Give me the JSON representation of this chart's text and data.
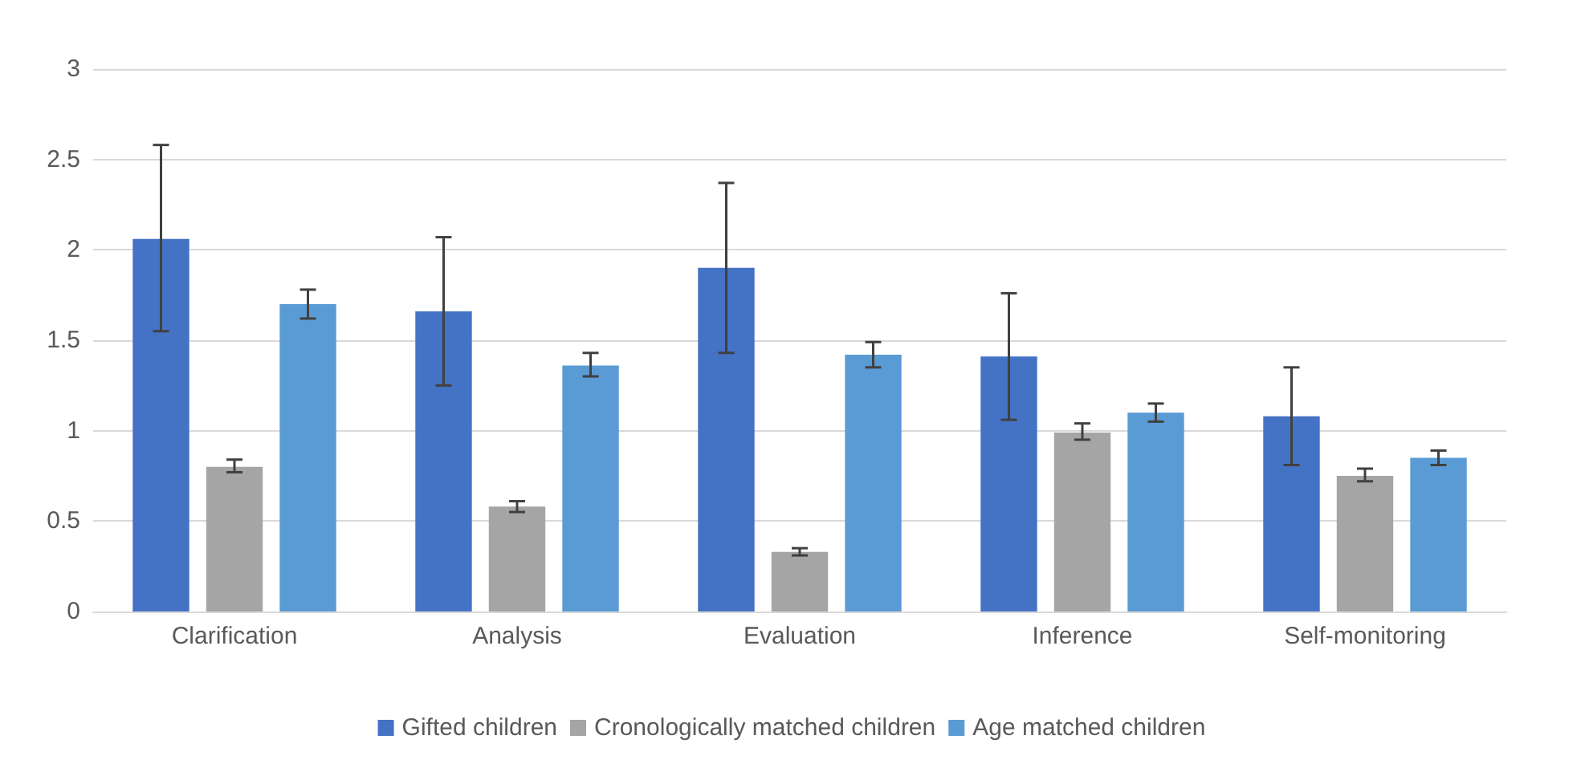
{
  "chart_data": {
    "type": "bar",
    "categories": [
      "Clarification",
      "Analysis",
      "Evaluation",
      "Inference",
      "Self-monitoring"
    ],
    "series": [
      {
        "name": "Gifted children",
        "color": "#4472c4",
        "values": [
          2.06,
          1.66,
          1.9,
          1.41,
          1.08
        ],
        "errors": [
          [
            1.55,
            2.58
          ],
          [
            1.25,
            2.07
          ],
          [
            1.43,
            2.37
          ],
          [
            1.06,
            1.76
          ],
          [
            0.81,
            1.35
          ]
        ]
      },
      {
        "name": "Cronologically matched children",
        "color": "#a5a5a5",
        "values": [
          0.8,
          0.58,
          0.33,
          0.99,
          0.75
        ],
        "errors": [
          [
            0.77,
            0.84
          ],
          [
            0.55,
            0.61
          ],
          [
            0.31,
            0.35
          ],
          [
            0.95,
            1.04
          ],
          [
            0.72,
            0.79
          ]
        ]
      },
      {
        "name": "Age matched children",
        "color": "#5b9bd5",
        "values": [
          1.7,
          1.36,
          1.42,
          1.1,
          0.85
        ],
        "errors": [
          [
            1.62,
            1.78
          ],
          [
            1.3,
            1.43
          ],
          [
            1.35,
            1.49
          ],
          [
            1.05,
            1.15
          ],
          [
            0.81,
            0.89
          ]
        ]
      }
    ],
    "ylim": [
      0,
      3
    ],
    "yticks": [
      0,
      0.5,
      1,
      1.5,
      2,
      2.5,
      3
    ],
    "grid": "y",
    "legend": "bottom"
  }
}
